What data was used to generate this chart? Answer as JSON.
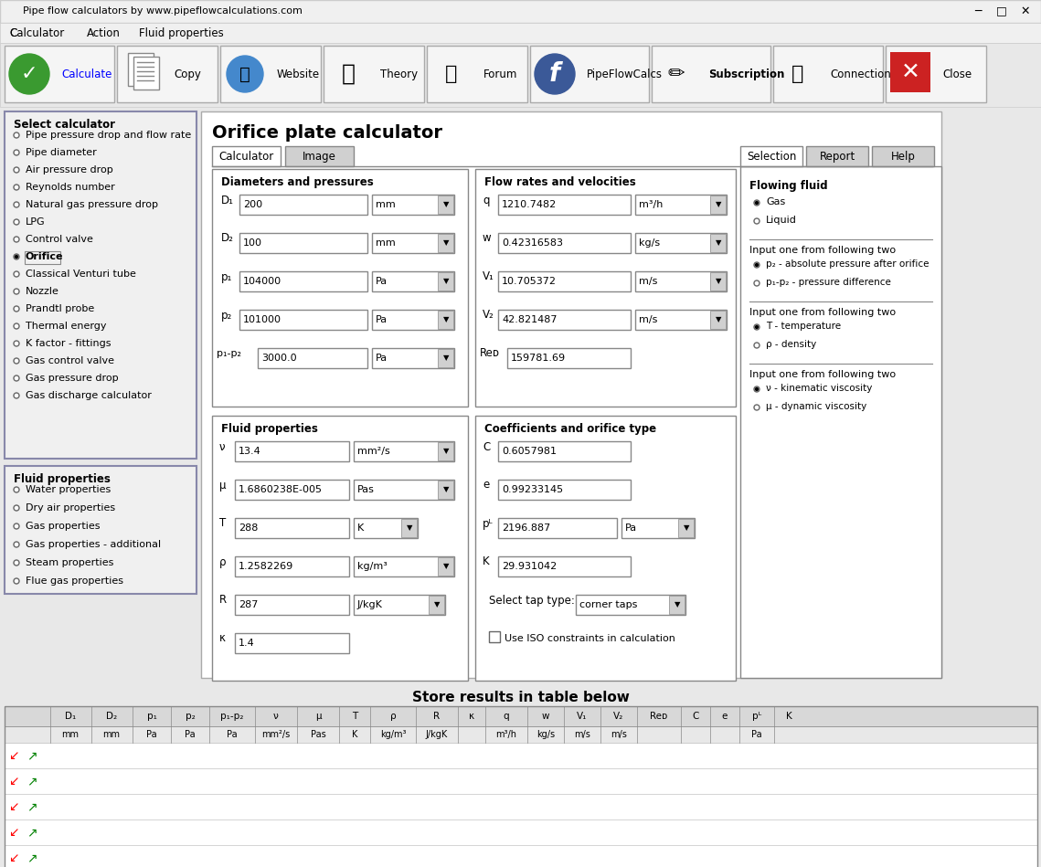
{
  "title_bar": "Pipe flow calculators by www.pipeflowcalculations.com",
  "menu_items": [
    "Calculator",
    "Action",
    "Fluid properties"
  ],
  "toolbar_buttons": [
    "Calculate",
    "Copy",
    "Website",
    "Theory",
    "Forum",
    "PipeFlowCalcs",
    "Subscription",
    "Connection",
    "Close"
  ],
  "main_title": "Orifice plate calculator",
  "tab_labels_left": [
    "Calculator",
    "Image"
  ],
  "tab_labels_right": [
    "Selection",
    "Report",
    "Help"
  ],
  "select_calculator_items": [
    "Pipe pressure drop and flow rate",
    "Pipe diameter",
    "Air pressure drop",
    "Reynolds number",
    "Natural gas pressure drop",
    "LPG",
    "Control valve",
    "Orifice",
    "Classical Venturi tube",
    "Nozzle",
    "Prandtl probe",
    "Thermal energy",
    "K factor - fittings",
    "Gas control valve",
    "Gas pressure drop",
    "Gas discharge calculator"
  ],
  "selected_calculator_index": 7,
  "fluid_properties_items": [
    "Water properties",
    "Dry air properties",
    "Gas properties",
    "Gas properties - additional",
    "Steam properties",
    "Flue gas properties"
  ],
  "section_diameters": "Diameters and pressures",
  "d1_label": "D₁",
  "d1_value": "200",
  "d1_unit": "mm",
  "d2_label": "D₂",
  "d2_value": "100",
  "d2_unit": "mm",
  "p1_label": "p₁",
  "p1_value": "104000",
  "p1_unit": "Pa",
  "p2_label": "p₂",
  "p2_value": "101000",
  "p2_unit": "Pa",
  "dp_label": "p₁-p₂",
  "dp_value": "3000.0",
  "dp_unit": "Pa",
  "section_flow": "Flow rates and velocities",
  "q_label": "q",
  "q_value": "1210.7482",
  "q_unit": "m³/h",
  "w_label": "w",
  "w_value": "0.42316583",
  "w_unit": "kg/s",
  "v1_label": "V₁",
  "v1_value": "10.705372",
  "v1_unit": "m/s",
  "v2_label": "V₂",
  "v2_value": "42.821487",
  "v2_unit": "m/s",
  "red_label": "Reᴅ",
  "red_value": "159781.69",
  "section_fluid": "Fluid properties",
  "nu_label": "ν",
  "nu_value": "13.4",
  "nu_unit": "mm²/s",
  "mu_label": "μ",
  "mu_value": "1.6860238E-005",
  "mu_unit": "Pas",
  "T_label": "T",
  "T_value": "288",
  "T_unit": "K",
  "rho_label": "ρ",
  "rho_value": "1.2582269",
  "rho_unit": "kg/m³",
  "R_label": "R",
  "R_value": "287",
  "R_unit": "J/kgK",
  "kappa_label": "κ",
  "kappa_value": "1.4",
  "section_coeff": "Coefficients and orifice type",
  "C_label": "C",
  "C_value": "0.6057981",
  "e_label": "e",
  "e_value": "0.99233145",
  "pL_label": "pᴸ",
  "pL_value": "2196.887",
  "pL_unit": "Pa",
  "K_label": "K",
  "K_value": "29.931042",
  "tap_label": "Select tap type:",
  "tap_value": "corner taps",
  "iso_label": "Use ISO constraints in calculation",
  "right_panel_title": "Flowing fluid",
  "radio_gas": "Gas",
  "radio_liquid": "Liquid",
  "group1_title": "Input one from following two",
  "radio_p2abs": "p₂ - absolute pressure after orifice",
  "radio_dp": "p₁-p₂ - pressure difference",
  "group2_title": "Input one from following two",
  "radio_T": "T - temperature",
  "radio_rho": "ρ - density",
  "group3_title": "Input one from following two",
  "radio_nu": "ν - kinematic viscosity",
  "radio_mu": "μ - dynamic viscosity",
  "store_label": "Store results in table below",
  "table_headers": [
    "D₁",
    "D₂",
    "p₁",
    "p₂",
    "p₁-p₂",
    "ν",
    "μ",
    "T",
    "ρ",
    "R",
    "κ",
    "q",
    "w",
    "V₁",
    "V₂",
    "Reᴅ",
    "C",
    "e",
    "pᴸ",
    "K"
  ],
  "table_units": [
    "mm",
    "mm",
    "Pa",
    "Pa",
    "Pa",
    "mm²/s",
    "Pas",
    "K",
    "kg/m³",
    "J/kgK",
    "",
    "m³/h",
    "kg/s",
    "m/s",
    "m/s",
    "",
    "",
    "",
    "Pa",
    ""
  ],
  "bg_color": "#e8e8e8",
  "panel_bg": "#f0f0f0",
  "input_bg": "#ffffff",
  "border_color": "#a0a0a0",
  "blue_text": "#0000ff",
  "selected_radio_color": "#000000",
  "tab_selected_bg": "#ffffff",
  "tab_unselected_bg": "#d0d0d0",
  "section_text_color": "#000080"
}
